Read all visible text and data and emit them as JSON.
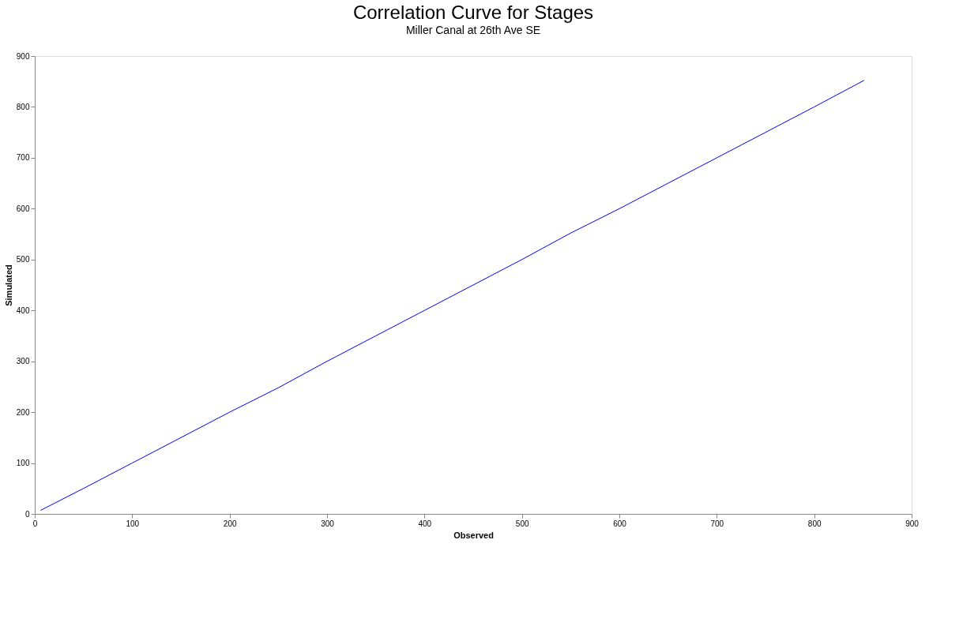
{
  "chart_data": {
    "type": "line",
    "title": "Correlation Curve for Stages",
    "subtitle": "Miller Canal at 26th Ave SE",
    "xlabel": "Observed",
    "ylabel": "Simulated",
    "x": [
      6,
      50,
      100,
      150,
      200,
      250,
      300,
      350,
      400,
      450,
      500,
      550,
      600,
      650,
      700,
      750,
      800,
      851
    ],
    "series": [
      {
        "color": "#0000ff",
        "values": [
          7,
          50,
          100,
          150,
          200,
          248,
          300,
          350,
          400,
          450,
          500,
          552,
          600,
          650,
          700,
          750,
          800,
          852
        ]
      }
    ],
    "xlim": [
      0,
      900
    ],
    "ylim": [
      0,
      900
    ],
    "xticks": [
      0,
      100,
      200,
      300,
      400,
      500,
      600,
      700,
      800,
      900
    ],
    "yticks": [
      0,
      100,
      200,
      300,
      400,
      500,
      600,
      700,
      800,
      900
    ],
    "grid": false,
    "legend": false,
    "marker": "none",
    "line_style": "solid"
  }
}
